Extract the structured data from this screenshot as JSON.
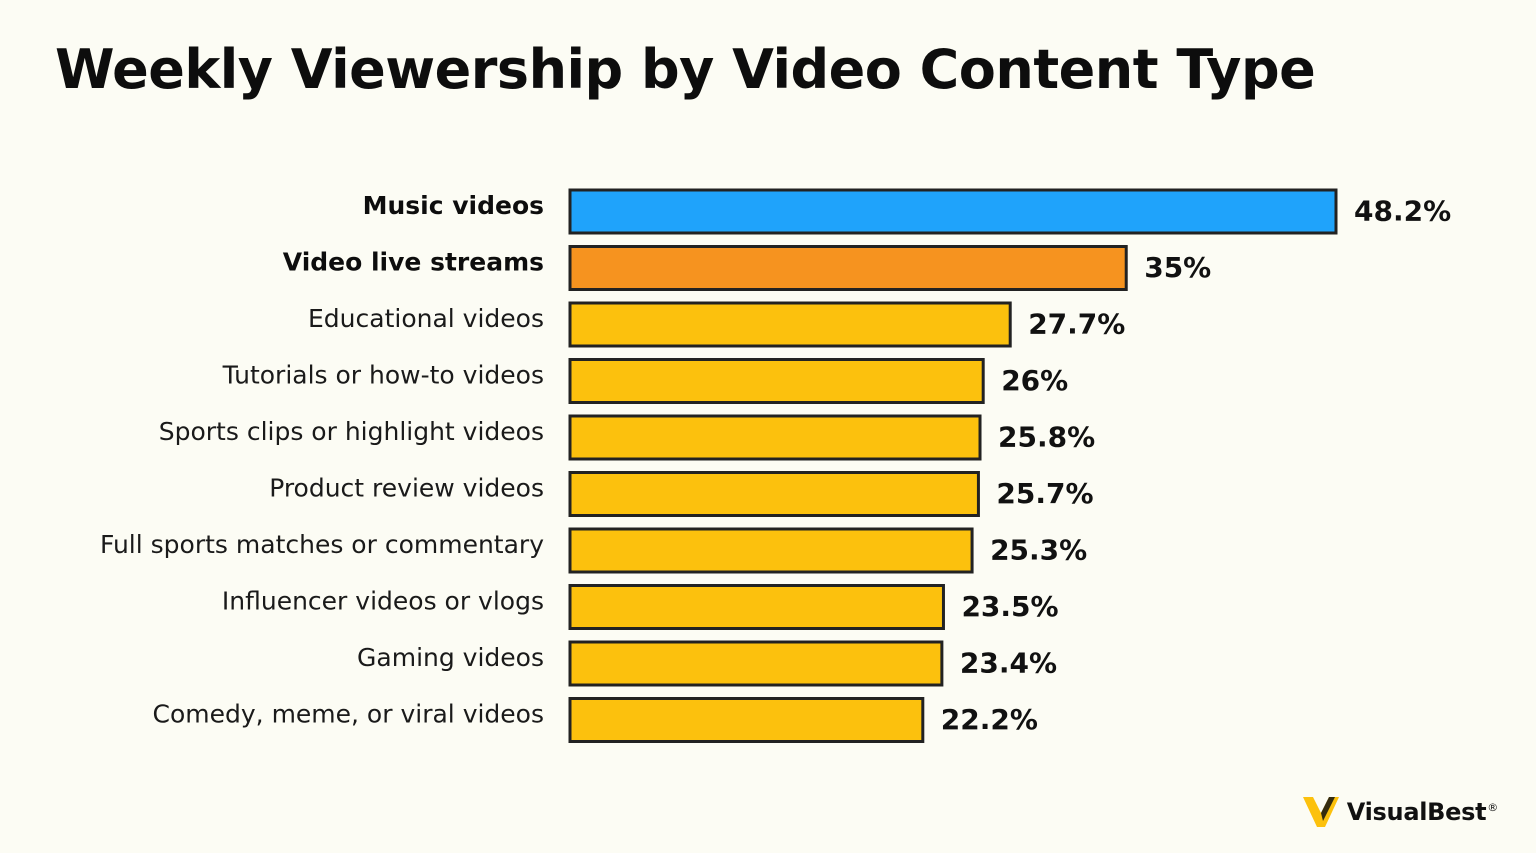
{
  "chart_data": {
    "type": "bar",
    "orientation": "horizontal",
    "title": "Weekly Viewership by Video Content Type",
    "categories": [
      "Music videos",
      "Video live streams",
      "Educational videos",
      "Tutorials or how-to videos",
      "Sports clips or highlight videos",
      "Product review videos",
      "Full sports matches or commentary",
      "Influencer videos or vlogs",
      "Gaming videos",
      "Comedy, meme, or viral videos"
    ],
    "values": [
      48.2,
      35,
      27.7,
      26,
      25.8,
      25.7,
      25.3,
      23.5,
      23.4,
      22.2
    ],
    "value_labels": [
      "48.2%",
      "35%",
      "27.7%",
      "26%",
      "25.8%",
      "25.7%",
      "25.3%",
      "23.5%",
      "23.4%",
      "22.2%"
    ],
    "colors": [
      "#1fa3fb",
      "#f6931f",
      "#fcc10d",
      "#fcc10d",
      "#fcc10d",
      "#fcc10d",
      "#fcc10d",
      "#fcc10d",
      "#fcc10d",
      "#fcc10d"
    ],
    "bold_categories": [
      true,
      true,
      false,
      false,
      false,
      false,
      false,
      false,
      false,
      false
    ],
    "bar_outline_color": "#222222",
    "xlim": [
      0,
      48.2
    ],
    "grid": false,
    "legend": "none",
    "xlabel": "",
    "ylabel": ""
  },
  "branding": {
    "logo_text": "VisualBest",
    "logo_reg": "®",
    "logo_icon": "visualbest-logo-icon",
    "logo_color": "#fcc10d"
  }
}
